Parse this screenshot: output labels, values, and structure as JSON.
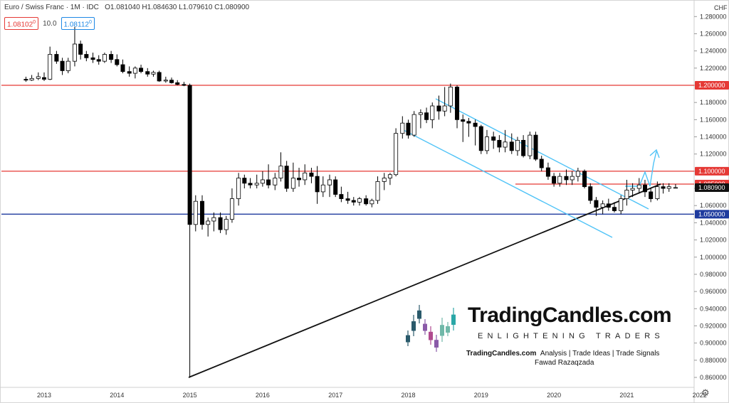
{
  "header": {
    "symbol": "Euro / Swiss Franc · 1M · IDC",
    "ohlc": "O1.081040 H1.084630 L1.079610 C1.080900",
    "sell_price": "1.08102",
    "sell_price_sup": "0",
    "spread": "10.0",
    "buy_price": "1.08112",
    "buy_price_sup": "0"
  },
  "axis_currency": "CHF",
  "colors": {
    "resistance": "#e53935",
    "support": "#1e3a9e",
    "channel": "#4fc3f7",
    "trend": "#111111",
    "bull": "#ffffff",
    "bear": "#000000",
    "projection": "#4fc3f7"
  },
  "chart_data": {
    "type": "candlestick",
    "title": "Euro / Swiss Franc · 1M · IDC",
    "xlabel": "",
    "ylabel": "",
    "x_ticks": [
      "2013",
      "2014",
      "2015",
      "2016",
      "2017",
      "2018",
      "2019",
      "2020",
      "2021",
      "2022"
    ],
    "y_ticks": [
      0.86,
      0.88,
      0.9,
      0.92,
      0.94,
      0.96,
      0.98,
      1.0,
      1.02,
      1.04,
      1.06,
      1.08,
      1.1,
      1.12,
      1.14,
      1.16,
      1.18,
      1.2,
      1.22,
      1.24,
      1.26,
      1.28
    ],
    "y_tick_labels": [
      "0.860000",
      "0.880000",
      "0.900000",
      "0.920000",
      "0.940000",
      "0.960000",
      "0.980000",
      "1.000000",
      "1.020000",
      "1.040000",
      "1.060000",
      "1.080000",
      "1.100000",
      "1.120000",
      "1.140000",
      "1.160000",
      "1.180000",
      "1.200000",
      "1.220000",
      "1.240000",
      "1.260000",
      "1.280000"
    ],
    "ylim": [
      0.845,
      1.3
    ],
    "grid": false,
    "candles": [
      {
        "t": "2012.75",
        "o": 1.207,
        "h": 1.21,
        "l": 1.204,
        "c": 1.206
      },
      {
        "t": "2012.83",
        "o": 1.206,
        "h": 1.212,
        "l": 1.205,
        "c": 1.208
      },
      {
        "t": "2012.92",
        "o": 1.208,
        "h": 1.215,
        "l": 1.206,
        "c": 1.21
      },
      {
        "t": "2013.00",
        "o": 1.209,
        "h": 1.215,
        "l": 1.205,
        "c": 1.207
      },
      {
        "t": "2013.08",
        "o": 1.207,
        "h": 1.245,
        "l": 1.206,
        "c": 1.236
      },
      {
        "t": "2013.17",
        "o": 1.236,
        "h": 1.24,
        "l": 1.225,
        "c": 1.228
      },
      {
        "t": "2013.25",
        "o": 1.228,
        "h": 1.232,
        "l": 1.212,
        "c": 1.217
      },
      {
        "t": "2013.33",
        "o": 1.217,
        "h": 1.232,
        "l": 1.214,
        "c": 1.228
      },
      {
        "t": "2013.42",
        "o": 1.228,
        "h": 1.268,
        "l": 1.222,
        "c": 1.248
      },
      {
        "t": "2013.50",
        "o": 1.248,
        "h": 1.252,
        "l": 1.23,
        "c": 1.236
      },
      {
        "t": "2013.58",
        "o": 1.236,
        "h": 1.24,
        "l": 1.228,
        "c": 1.232
      },
      {
        "t": "2013.67",
        "o": 1.232,
        "h": 1.238,
        "l": 1.226,
        "c": 1.23
      },
      {
        "t": "2013.75",
        "o": 1.23,
        "h": 1.235,
        "l": 1.224,
        "c": 1.228
      },
      {
        "t": "2013.83",
        "o": 1.228,
        "h": 1.238,
        "l": 1.226,
        "c": 1.236
      },
      {
        "t": "2013.92",
        "o": 1.236,
        "h": 1.24,
        "l": 1.226,
        "c": 1.23
      },
      {
        "t": "2014.00",
        "o": 1.23,
        "h": 1.236,
        "l": 1.222,
        "c": 1.224
      },
      {
        "t": "2014.08",
        "o": 1.224,
        "h": 1.23,
        "l": 1.214,
        "c": 1.216
      },
      {
        "t": "2014.17",
        "o": 1.216,
        "h": 1.222,
        "l": 1.21,
        "c": 1.214
      },
      {
        "t": "2014.25",
        "o": 1.214,
        "h": 1.222,
        "l": 1.208,
        "c": 1.22
      },
      {
        "t": "2014.33",
        "o": 1.22,
        "h": 1.224,
        "l": 1.214,
        "c": 1.216
      },
      {
        "t": "2014.42",
        "o": 1.216,
        "h": 1.22,
        "l": 1.21,
        "c": 1.213
      },
      {
        "t": "2014.50",
        "o": 1.213,
        "h": 1.217,
        "l": 1.21,
        "c": 1.215
      },
      {
        "t": "2014.58",
        "o": 1.215,
        "h": 1.217,
        "l": 1.204,
        "c": 1.205
      },
      {
        "t": "2014.67",
        "o": 1.205,
        "h": 1.21,
        "l": 1.203,
        "c": 1.206
      },
      {
        "t": "2014.75",
        "o": 1.206,
        "h": 1.209,
        "l": 1.202,
        "c": 1.203
      },
      {
        "t": "2014.83",
        "o": 1.203,
        "h": 1.206,
        "l": 1.2,
        "c": 1.201
      },
      {
        "t": "2014.92",
        "o": 1.201,
        "h": 1.204,
        "l": 1.199,
        "c": 1.2
      },
      {
        "t": "2015.00",
        "o": 1.2,
        "h": 1.202,
        "l": 0.86,
        "c": 1.038
      },
      {
        "t": "2015.08",
        "o": 1.038,
        "h": 1.072,
        "l": 1.03,
        "c": 1.065
      },
      {
        "t": "2015.17",
        "o": 1.065,
        "h": 1.072,
        "l": 1.032,
        "c": 1.038
      },
      {
        "t": "2015.25",
        "o": 1.038,
        "h": 1.046,
        "l": 1.024,
        "c": 1.042
      },
      {
        "t": "2015.33",
        "o": 1.042,
        "h": 1.052,
        "l": 1.03,
        "c": 1.046
      },
      {
        "t": "2015.42",
        "o": 1.046,
        "h": 1.052,
        "l": 1.028,
        "c": 1.032
      },
      {
        "t": "2015.50",
        "o": 1.032,
        "h": 1.048,
        "l": 1.026,
        "c": 1.044
      },
      {
        "t": "2015.58",
        "o": 1.044,
        "h": 1.08,
        "l": 1.04,
        "c": 1.068
      },
      {
        "t": "2015.67",
        "o": 1.068,
        "h": 1.098,
        "l": 1.06,
        "c": 1.092
      },
      {
        "t": "2015.75",
        "o": 1.092,
        "h": 1.096,
        "l": 1.08,
        "c": 1.086
      },
      {
        "t": "2015.83",
        "o": 1.086,
        "h": 1.092,
        "l": 1.08,
        "c": 1.084
      },
      {
        "t": "2015.92",
        "o": 1.084,
        "h": 1.096,
        "l": 1.08,
        "c": 1.086
      },
      {
        "t": "2016.00",
        "o": 1.086,
        "h": 1.1,
        "l": 1.082,
        "c": 1.09
      },
      {
        "t": "2016.08",
        "o": 1.09,
        "h": 1.108,
        "l": 1.08,
        "c": 1.084
      },
      {
        "t": "2016.17",
        "o": 1.084,
        "h": 1.098,
        "l": 1.078,
        "c": 1.092
      },
      {
        "t": "2016.25",
        "o": 1.092,
        "h": 1.122,
        "l": 1.088,
        "c": 1.106
      },
      {
        "t": "2016.33",
        "o": 1.106,
        "h": 1.112,
        "l": 1.076,
        "c": 1.08
      },
      {
        "t": "2016.42",
        "o": 1.08,
        "h": 1.11,
        "l": 1.076,
        "c": 1.092
      },
      {
        "t": "2016.50",
        "o": 1.092,
        "h": 1.104,
        "l": 1.082,
        "c": 1.09
      },
      {
        "t": "2016.58",
        "o": 1.09,
        "h": 1.108,
        "l": 1.084,
        "c": 1.098
      },
      {
        "t": "2016.67",
        "o": 1.098,
        "h": 1.104,
        "l": 1.086,
        "c": 1.094
      },
      {
        "t": "2016.75",
        "o": 1.094,
        "h": 1.106,
        "l": 1.062,
        "c": 1.076
      },
      {
        "t": "2016.83",
        "o": 1.076,
        "h": 1.094,
        "l": 1.07,
        "c": 1.084
      },
      {
        "t": "2016.92",
        "o": 1.084,
        "h": 1.096,
        "l": 1.07,
        "c": 1.09
      },
      {
        "t": "2017.00",
        "o": 1.09,
        "h": 1.094,
        "l": 1.07,
        "c": 1.073
      },
      {
        "t": "2017.08",
        "o": 1.073,
        "h": 1.082,
        "l": 1.064,
        "c": 1.068
      },
      {
        "t": "2017.17",
        "o": 1.068,
        "h": 1.076,
        "l": 1.062,
        "c": 1.066
      },
      {
        "t": "2017.25",
        "o": 1.066,
        "h": 1.07,
        "l": 1.06,
        "c": 1.064
      },
      {
        "t": "2017.33",
        "o": 1.064,
        "h": 1.07,
        "l": 1.06,
        "c": 1.068
      },
      {
        "t": "2017.42",
        "o": 1.068,
        "h": 1.072,
        "l": 1.06,
        "c": 1.062
      },
      {
        "t": "2017.50",
        "o": 1.062,
        "h": 1.068,
        "l": 1.058,
        "c": 1.066
      },
      {
        "t": "2017.58",
        "o": 1.066,
        "h": 1.094,
        "l": 1.062,
        "c": 1.088
      },
      {
        "t": "2017.67",
        "o": 1.088,
        "h": 1.098,
        "l": 1.078,
        "c": 1.092
      },
      {
        "t": "2017.75",
        "o": 1.092,
        "h": 1.098,
        "l": 1.084,
        "c": 1.096
      },
      {
        "t": "2017.83",
        "o": 1.096,
        "h": 1.15,
        "l": 1.094,
        "c": 1.144
      },
      {
        "t": "2017.92",
        "o": 1.144,
        "h": 1.164,
        "l": 1.138,
        "c": 1.156
      },
      {
        "t": "2018.00",
        "o": 1.156,
        "h": 1.16,
        "l": 1.138,
        "c": 1.142
      },
      {
        "t": "2018.08",
        "o": 1.142,
        "h": 1.17,
        "l": 1.14,
        "c": 1.166
      },
      {
        "t": "2018.17",
        "o": 1.166,
        "h": 1.172,
        "l": 1.15,
        "c": 1.168
      },
      {
        "t": "2018.25",
        "o": 1.168,
        "h": 1.174,
        "l": 1.156,
        "c": 1.16
      },
      {
        "t": "2018.33",
        "o": 1.16,
        "h": 1.18,
        "l": 1.15,
        "c": 1.176
      },
      {
        "t": "2018.42",
        "o": 1.176,
        "h": 1.188,
        "l": 1.16,
        "c": 1.17
      },
      {
        "t": "2018.50",
        "o": 1.17,
        "h": 1.198,
        "l": 1.164,
        "c": 1.176
      },
      {
        "t": "2018.58",
        "o": 1.176,
        "h": 1.202,
        "l": 1.168,
        "c": 1.198
      },
      {
        "t": "2018.67",
        "o": 1.198,
        "h": 1.2,
        "l": 1.15,
        "c": 1.16
      },
      {
        "t": "2018.75",
        "o": 1.16,
        "h": 1.166,
        "l": 1.134,
        "c": 1.158
      },
      {
        "t": "2018.83",
        "o": 1.158,
        "h": 1.162,
        "l": 1.14,
        "c": 1.156
      },
      {
        "t": "2018.92",
        "o": 1.156,
        "h": 1.16,
        "l": 1.13,
        "c": 1.152
      },
      {
        "t": "2019.00",
        "o": 1.152,
        "h": 1.154,
        "l": 1.12,
        "c": 1.124
      },
      {
        "t": "2019.08",
        "o": 1.124,
        "h": 1.148,
        "l": 1.12,
        "c": 1.14
      },
      {
        "t": "2019.17",
        "o": 1.14,
        "h": 1.146,
        "l": 1.126,
        "c": 1.136
      },
      {
        "t": "2019.25",
        "o": 1.136,
        "h": 1.142,
        "l": 1.122,
        "c": 1.128
      },
      {
        "t": "2019.33",
        "o": 1.128,
        "h": 1.148,
        "l": 1.122,
        "c": 1.134
      },
      {
        "t": "2019.42",
        "o": 1.134,
        "h": 1.144,
        "l": 1.12,
        "c": 1.124
      },
      {
        "t": "2019.50",
        "o": 1.124,
        "h": 1.14,
        "l": 1.118,
        "c": 1.136
      },
      {
        "t": "2019.58",
        "o": 1.136,
        "h": 1.142,
        "l": 1.116,
        "c": 1.118
      },
      {
        "t": "2019.67",
        "o": 1.118,
        "h": 1.146,
        "l": 1.114,
        "c": 1.142
      },
      {
        "t": "2019.75",
        "o": 1.142,
        "h": 1.146,
        "l": 1.112,
        "c": 1.114
      },
      {
        "t": "2019.83",
        "o": 1.114,
        "h": 1.118,
        "l": 1.1,
        "c": 1.104
      },
      {
        "t": "2019.92",
        "o": 1.104,
        "h": 1.11,
        "l": 1.09,
        "c": 1.094
      },
      {
        "t": "2020.00",
        "o": 1.094,
        "h": 1.098,
        "l": 1.082,
        "c": 1.086
      },
      {
        "t": "2020.08",
        "o": 1.086,
        "h": 1.098,
        "l": 1.082,
        "c": 1.094
      },
      {
        "t": "2020.17",
        "o": 1.094,
        "h": 1.102,
        "l": 1.084,
        "c": 1.09
      },
      {
        "t": "2020.25",
        "o": 1.09,
        "h": 1.1,
        "l": 1.084,
        "c": 1.094
      },
      {
        "t": "2020.33",
        "o": 1.094,
        "h": 1.104,
        "l": 1.088,
        "c": 1.1
      },
      {
        "t": "2020.42",
        "o": 1.1,
        "h": 1.102,
        "l": 1.08,
        "c": 1.082
      },
      {
        "t": "2020.50",
        "o": 1.082,
        "h": 1.086,
        "l": 1.062,
        "c": 1.066
      },
      {
        "t": "2020.58",
        "o": 1.066,
        "h": 1.07,
        "l": 1.048,
        "c": 1.058
      },
      {
        "t": "2020.67",
        "o": 1.058,
        "h": 1.066,
        "l": 1.05,
        "c": 1.062
      },
      {
        "t": "2020.75",
        "o": 1.062,
        "h": 1.068,
        "l": 1.054,
        "c": 1.058
      },
      {
        "t": "2020.83",
        "o": 1.058,
        "h": 1.064,
        "l": 1.052,
        "c": 1.054
      },
      {
        "t": "2020.92",
        "o": 1.054,
        "h": 1.072,
        "l": 1.05,
        "c": 1.068
      },
      {
        "t": "2021.00",
        "o": 1.068,
        "h": 1.09,
        "l": 1.06,
        "c": 1.078
      },
      {
        "t": "2021.08",
        "o": 1.078,
        "h": 1.086,
        "l": 1.07,
        "c": 1.08
      },
      {
        "t": "2021.17",
        "o": 1.08,
        "h": 1.092,
        "l": 1.074,
        "c": 1.084
      },
      {
        "t": "2021.25",
        "o": 1.084,
        "h": 1.09,
        "l": 1.07,
        "c": 1.076
      },
      {
        "t": "2021.33",
        "o": 1.076,
        "h": 1.08,
        "l": 1.064,
        "c": 1.068
      },
      {
        "t": "2021.42",
        "o": 1.068,
        "h": 1.088,
        "l": 1.066,
        "c": 1.082
      },
      {
        "t": "2021.50",
        "o": 1.082,
        "h": 1.086,
        "l": 1.074,
        "c": 1.08
      },
      {
        "t": "2021.58",
        "o": 1.08,
        "h": 1.086,
        "l": 1.076,
        "c": 1.082
      },
      {
        "t": "2021.67",
        "o": 1.081,
        "h": 1.085,
        "l": 1.08,
        "c": 1.081
      }
    ],
    "levels": [
      {
        "value": 1.2,
        "label": "1.200000",
        "kind": "resistance"
      },
      {
        "value": 1.1,
        "label": "1.100000",
        "kind": "resistance"
      },
      {
        "value": 1.085,
        "label": "1.085000",
        "kind": "resistance"
      },
      {
        "value": 1.05,
        "label": "1.050000",
        "kind": "support"
      }
    ],
    "last_price": {
      "value": 1.0809,
      "label": "1.080900"
    }
  },
  "branding": {
    "title": "TradingCandles.com",
    "tagline": "ENLIGHTENING TRADERS",
    "site": "TradingCandles.com",
    "services": "Analysis | Trade Ideas | Trade Signals",
    "author": "Fawad Razaqzada"
  }
}
